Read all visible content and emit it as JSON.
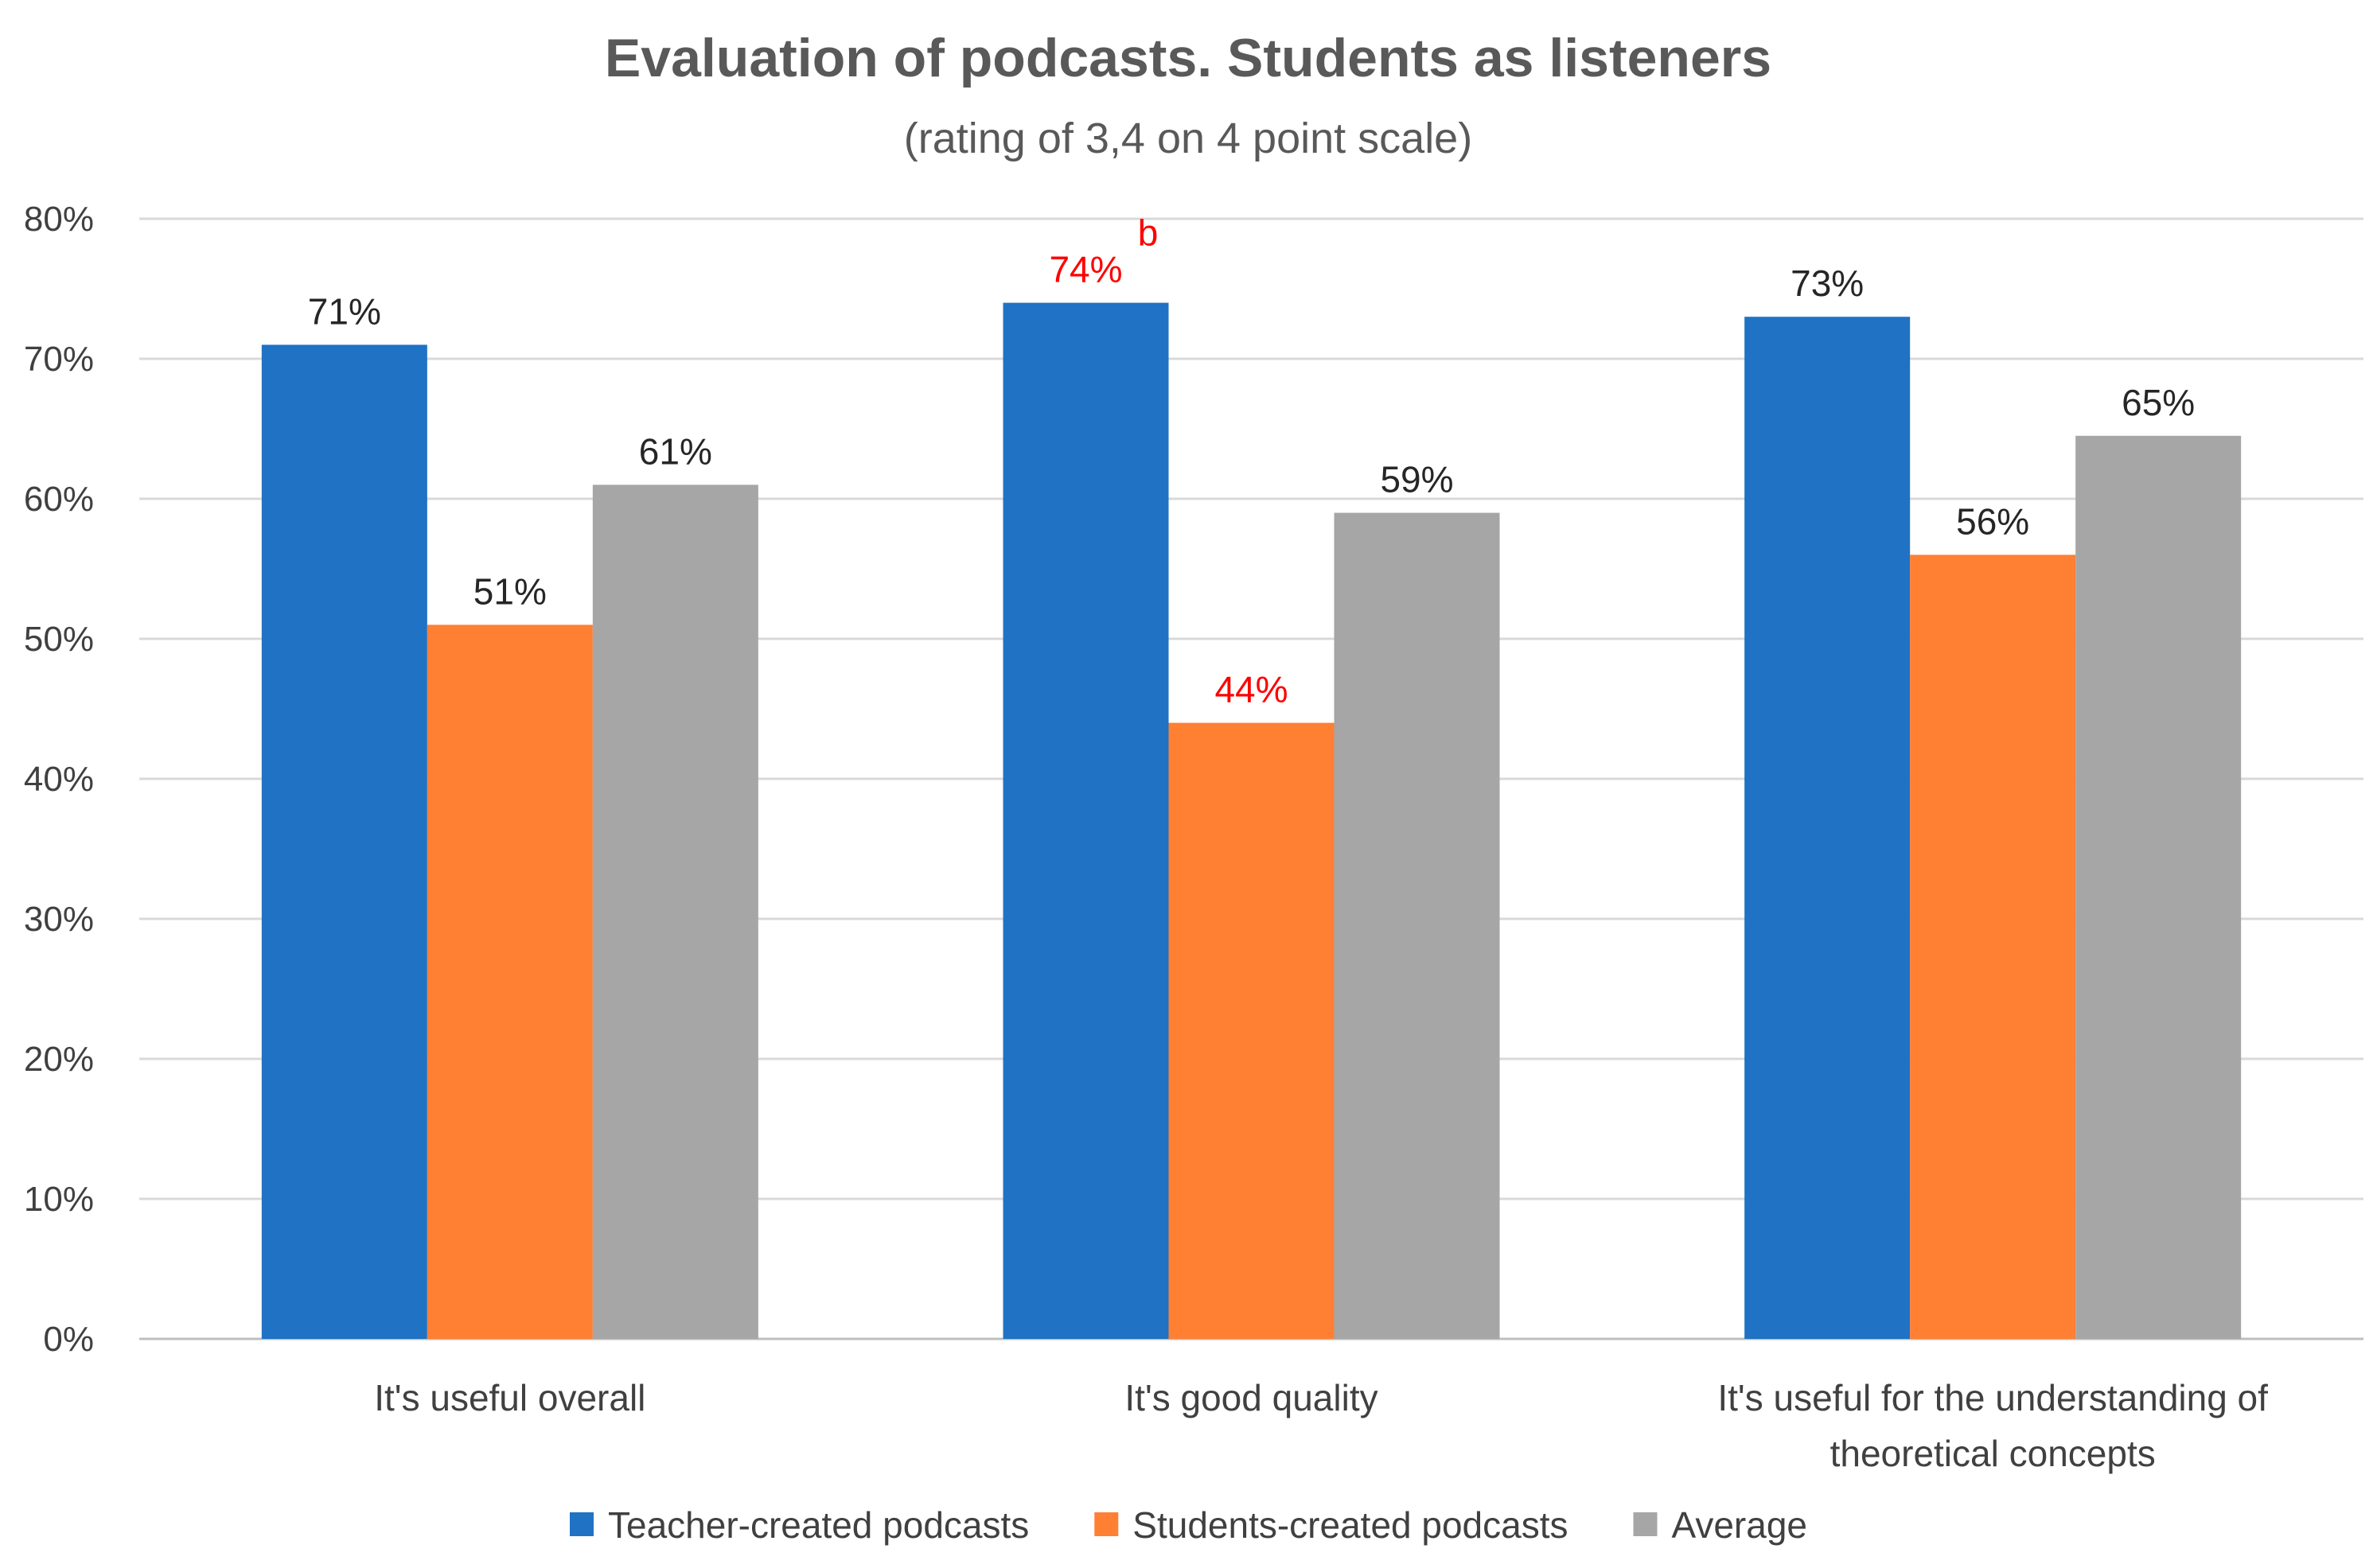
{
  "chart_data": {
    "type": "bar",
    "title": "Evaluation of podcasts. Students as listeners",
    "subtitle": "(rating of 3,4 on 4 point scale)",
    "categories": [
      [
        "It's useful overall"
      ],
      [
        "It's good quality"
      ],
      [
        "It's useful for the understanding of",
        "theoretical concepts"
      ]
    ],
    "series": [
      {
        "name": "Teacher-created podcasts",
        "color": "#1F72C4",
        "values": [
          71,
          74,
          73
        ],
        "labels": [
          "71%",
          "74%",
          "73%"
        ],
        "label_colors": [
          "#262626",
          "#FF0000",
          "#262626"
        ]
      },
      {
        "name": "Students-created podcasts",
        "color": "#FF7F33",
        "values": [
          51,
          44,
          56
        ],
        "labels": [
          "51%",
          "44%",
          "56%"
        ],
        "label_colors": [
          "#262626",
          "#FF0000",
          "#262626"
        ]
      },
      {
        "name": "Average",
        "color": "#A6A6A6",
        "values": [
          61,
          59,
          64.5
        ],
        "labels": [
          "61%",
          "59%",
          "65%"
        ],
        "label_colors": [
          "#262626",
          "#262626",
          "#262626"
        ]
      }
    ],
    "annotations": [
      {
        "text": "b",
        "series": 0,
        "category": 1,
        "color": "#FF0000"
      }
    ],
    "yticks": [
      "0%",
      "10%",
      "20%",
      "30%",
      "40%",
      "50%",
      "60%",
      "70%",
      "80%"
    ],
    "ylim": [
      0,
      80
    ],
    "grid": true,
    "legend_position": "bottom"
  }
}
